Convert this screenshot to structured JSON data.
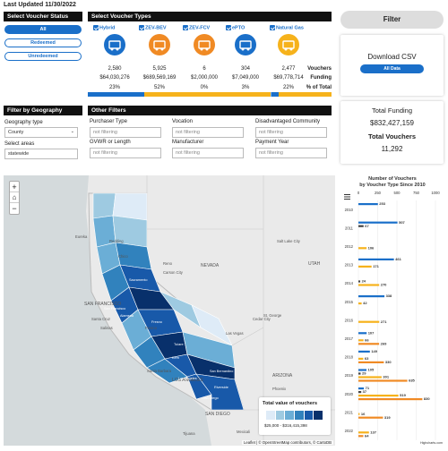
{
  "last_updated": "Last Updated 11/30/2022",
  "status": {
    "header": "Select Voucher Status",
    "options": [
      {
        "label": "All",
        "active": true
      },
      {
        "label": "Redeemed",
        "active": false
      },
      {
        "label": "Unredeemed",
        "active": false
      }
    ]
  },
  "types": {
    "header": "Select Voucher Types",
    "items": [
      {
        "label": "Hybrid",
        "icon": "hybrid-truck-icon",
        "color": "#1a6fc9",
        "vouchers": "2,580",
        "funding": "$64,030,276",
        "pct": "23%"
      },
      {
        "label": "ZEV-BEV",
        "icon": "battery-truck-icon",
        "color": "#f08a24",
        "vouchers": "5,925",
        "funding": "$689,569,169",
        "pct": "52%"
      },
      {
        "label": "ZEV-FCV",
        "icon": "fuel-cell-icon",
        "color": "#f08a24",
        "vouchers": "6",
        "funding": "$2,000,000",
        "pct": "0%"
      },
      {
        "label": "ePTO",
        "icon": "epto-truck-icon",
        "color": "#1a6fc9",
        "vouchers": "304",
        "funding": "$7,049,000",
        "pct": "3%"
      },
      {
        "label": "Natural Gas",
        "icon": "gas-pump-icon",
        "color": "#f6b21b",
        "vouchers": "2,477",
        "funding": "$69,778,714",
        "pct": "22%"
      }
    ],
    "row_labels": {
      "vouchers": "Vouchers",
      "funding": "Funding",
      "pct": "% of Total"
    },
    "bar_segments": [
      {
        "share": 0.23,
        "color": "#1a6fc9"
      },
      {
        "share": 0.52,
        "color": "#f6b21b"
      },
      {
        "share": 0.003,
        "color": "#7fb4e8"
      },
      {
        "share": 0.03,
        "color": "#1a6fc9"
      },
      {
        "share": 0.217,
        "color": "#f6b21b"
      }
    ]
  },
  "filter_button": "Filter",
  "download": {
    "title": "Download CSV",
    "button": "All Data"
  },
  "totals": {
    "funding_label": "Total Funding",
    "funding_value": "$832,427,159",
    "vouchers_label": "Total Vouchers",
    "vouchers_value": "11,292"
  },
  "geo": {
    "header": "Filter by Geography",
    "type_label": "Geography type",
    "type_value": "County",
    "area_label": "Select areas",
    "area_value": "statewide"
  },
  "other": {
    "header": "Other Filters",
    "fields": [
      {
        "label": "Purchaser Type",
        "value": "not filtering"
      },
      {
        "label": "Vocation",
        "value": "not filtering"
      },
      {
        "label": "Disadvantaged Community",
        "value": "not filtering"
      },
      {
        "label": "GVWR or Length",
        "value": "not filtering"
      },
      {
        "label": "Manufacturer",
        "value": "not filtering"
      },
      {
        "label": "Payment Year",
        "value": "not filtering"
      }
    ]
  },
  "map": {
    "places": [
      "Eureka",
      "Redding",
      "Chico",
      "Reno",
      "Carson City",
      "NEVADA",
      "Salt Lake City",
      "UTAH",
      "SAN FRANCISCO",
      "Santa Cruz",
      "Salinas",
      "Fresno",
      "St. George",
      "Las Vegas",
      "Santa Barbara",
      "LOS ANGELES",
      "SAN DIEGO",
      "ARIZONA",
      "Phoenix",
      "Tucson",
      "Tijuana",
      "Mexicali",
      "Cedar City"
    ],
    "county_labels": [
      "Sacramento",
      "San Francisco",
      "Fresno",
      "Tulare",
      "Kern",
      "Los Angeles",
      "San Bernardino",
      "Riverside",
      "San Diego",
      "Alameda"
    ],
    "legend_title": "Total value of vouchers",
    "legend_range": "$25,000 - $316,415,398",
    "legend_colors": [
      "#deebf7",
      "#9ecae1",
      "#6baed6",
      "#3182bd",
      "#1859a9",
      "#08306b"
    ],
    "attribution": "Leaflet | © OpenStreetMap contributors, © CartoDB",
    "zoom_in": "+",
    "zoom_out": "−"
  },
  "chart_data": {
    "type": "bar",
    "orientation": "horizontal",
    "title": "Number of Vouchers",
    "subtitle": "by Voucher Type Since 2010",
    "categories": [
      "2010",
      "2011",
      "2012",
      "2013",
      "2014",
      "2015",
      "2016",
      "2017",
      "2018",
      "2019",
      "2020",
      "2021",
      "2022"
    ],
    "xlim": [
      0,
      1000
    ],
    "xticks": [
      "0",
      "250",
      "500",
      "750",
      "1000"
    ],
    "series": [
      {
        "color": "#1a6fc9",
        "values": [
          253,
          507,
          0,
          461,
          0,
          338,
          0,
          107,
          149,
          105,
          71,
          0,
          0
        ]
      },
      {
        "color": "#444444",
        "values": [
          0,
          67,
          0,
          0,
          24,
          0,
          0,
          0,
          0,
          29,
          37,
          0,
          0
        ]
      },
      {
        "color": "#f6b21b",
        "values": [
          0,
          0,
          106,
          171,
          270,
          42,
          271,
          66,
          63,
          301,
          519,
          16,
          137
        ]
      },
      {
        "color": "#f08a24",
        "values": [
          0,
          0,
          0,
          0,
          0,
          0,
          0,
          269,
          330,
          635,
          830,
          319,
          64
        ]
      }
    ],
    "value_labels": [
      [
        "253",
        "",
        "",
        ""
      ],
      [
        "507",
        "67",
        "",
        ""
      ],
      [
        "",
        "",
        "106",
        ""
      ],
      [
        "461",
        "",
        "171",
        ""
      ],
      [
        "",
        "24",
        "270",
        ""
      ],
      [
        "338",
        "",
        "42",
        ""
      ],
      [
        "",
        "",
        "271",
        ""
      ],
      [
        "107",
        "",
        "66",
        "269"
      ],
      [
        "149",
        "",
        "63",
        "330"
      ],
      [
        "105",
        "29",
        "301",
        "635"
      ],
      [
        "71",
        "37",
        "519",
        "830"
      ],
      [
        "",
        "",
        "16",
        "319"
      ],
      [
        "",
        "",
        "137",
        "64"
      ]
    ],
    "credit": "Highcharts.com",
    "menu_icon": "hamburger-menu-icon"
  }
}
